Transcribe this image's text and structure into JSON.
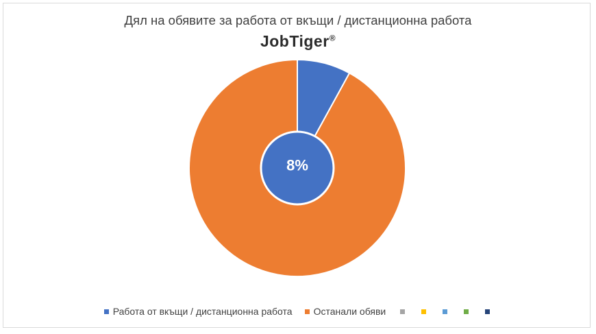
{
  "chart_data": {
    "type": "pie",
    "title": "Дял на обявите за работа от вкъщи / дистанционна работа",
    "brand": "JobTiger",
    "brand_mark": "®",
    "center_label": "8%",
    "categories": [
      "Работа от вкъщи / дистанционна работа",
      "Останали обяви"
    ],
    "values": [
      8,
      92
    ],
    "colors": [
      "#4472c4",
      "#ed7d31"
    ],
    "legend_position": "bottom",
    "extra_legend_colors": [
      "#a5a5a5",
      "#ffc000",
      "#5b9bd5",
      "#70ad47",
      "#264478"
    ]
  }
}
